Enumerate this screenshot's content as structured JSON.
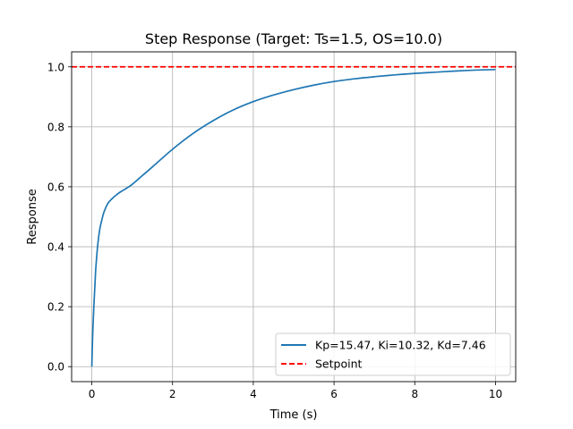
{
  "chart_data": {
    "type": "line",
    "title": "Step Response (Target: Ts=1.5, OS=10.0)",
    "xlabel": "Time (s)",
    "ylabel": "Response",
    "xlim": [
      -0.5,
      10.5
    ],
    "ylim": [
      -0.05,
      1.05
    ],
    "xticks": [
      0,
      2,
      4,
      6,
      8,
      10
    ],
    "yticks": [
      0.0,
      0.2,
      0.4,
      0.6,
      0.8,
      1.0
    ],
    "xtick_labels": [
      "0",
      "2",
      "4",
      "6",
      "8",
      "10"
    ],
    "ytick_labels": [
      "0.0",
      "0.2",
      "0.4",
      "0.6",
      "0.8",
      "1.0"
    ],
    "grid": true,
    "legend_position": "lower-right",
    "series": [
      {
        "name": "Kp=15.47, Ki=10.32, Kd=7.46",
        "color": "#1f77b4",
        "style": "solid",
        "x": [
          0,
          0.02,
          0.05,
          0.08,
          0.1,
          0.15,
          0.2,
          0.25,
          0.3,
          0.4,
          0.5,
          0.6,
          0.7,
          0.8,
          1.0,
          1.25,
          1.5,
          2.0,
          2.5,
          3.0,
          3.5,
          4.0,
          4.5,
          5.0,
          5.5,
          6.0,
          6.5,
          7.0,
          7.5,
          8.0,
          8.5,
          9.0,
          9.5,
          10.0
        ],
        "y": [
          0.0,
          0.1,
          0.2,
          0.28,
          0.33,
          0.41,
          0.46,
          0.49,
          0.515,
          0.545,
          0.56,
          0.572,
          0.582,
          0.59,
          0.608,
          0.637,
          0.666,
          0.725,
          0.777,
          0.82,
          0.856,
          0.884,
          0.906,
          0.924,
          0.939,
          0.951,
          0.96,
          0.967,
          0.973,
          0.978,
          0.982,
          0.986,
          0.989,
          0.991
        ]
      },
      {
        "name": "Setpoint",
        "color": "#ff0000",
        "style": "dashed",
        "x": [
          -0.5,
          10.5
        ],
        "y": [
          1.0,
          1.0
        ]
      }
    ]
  }
}
